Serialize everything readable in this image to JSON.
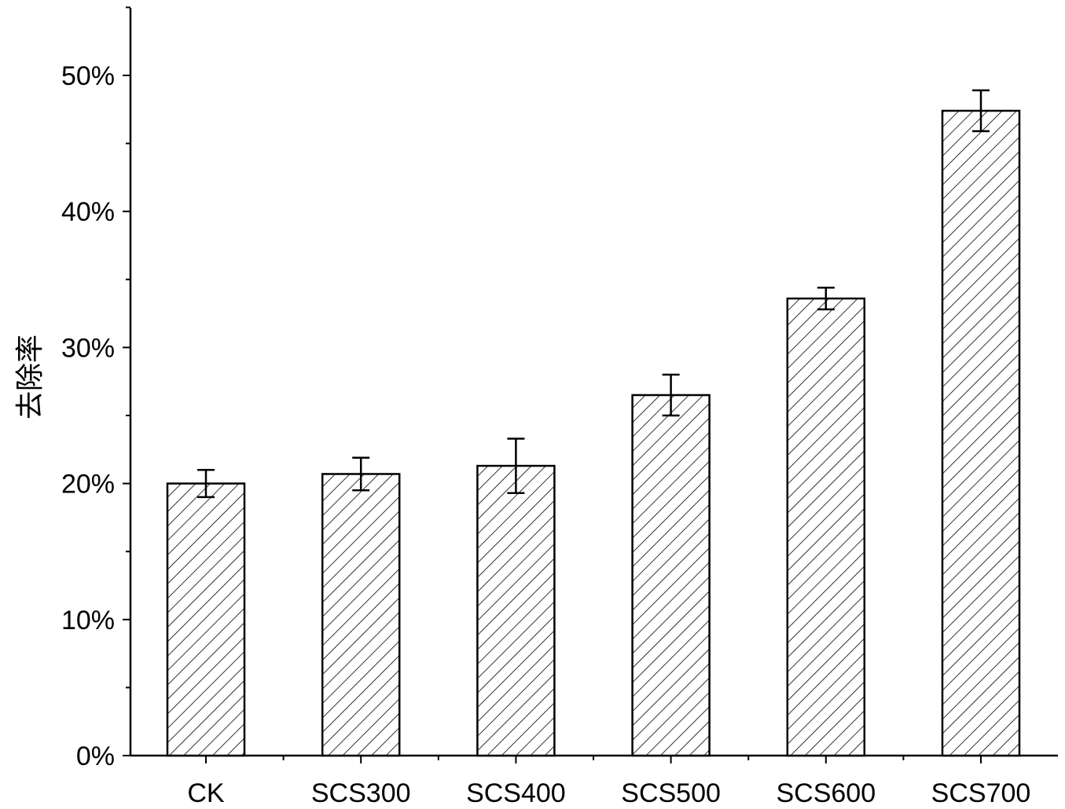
{
  "chart_data": {
    "type": "bar",
    "title": "",
    "xlabel": "",
    "ylabel": "去除率",
    "categories": [
      "CK",
      "SCS300",
      "SCS400",
      "SCS500",
      "SCS600",
      "SCS700"
    ],
    "values": [
      0.2,
      0.207,
      0.213,
      0.265,
      0.336,
      0.474
    ],
    "error": [
      0.01,
      0.012,
      0.02,
      0.015,
      0.008,
      0.015
    ],
    "ylim": [
      0,
      0.55
    ],
    "yticks": [
      0,
      0.1,
      0.2,
      0.3,
      0.4,
      0.5
    ],
    "ytick_labels": [
      "0%",
      "10%",
      "20%",
      "30%",
      "40%",
      "50%"
    ],
    "grid": false,
    "bar_pattern": "diagonal-hatch",
    "bar_color": "#ffffff",
    "edge_color": "#000000"
  }
}
